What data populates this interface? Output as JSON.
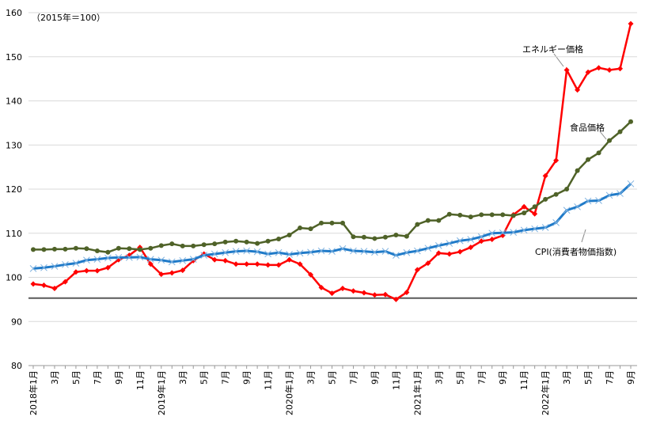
{
  "chart_data": {
    "type": "line",
    "unit_note": "（2015年＝100）",
    "categories": [
      "2018年1月",
      null,
      "3月",
      null,
      "5月",
      null,
      "7月",
      null,
      "9月",
      null,
      "11月",
      null,
      "2019年1月",
      null,
      "3月",
      null,
      "5月",
      null,
      "7月",
      null,
      "9月",
      null,
      "11月",
      null,
      "2020年1月",
      null,
      "3月",
      null,
      "5月",
      null,
      "7月",
      null,
      "9月",
      null,
      "11月",
      null,
      "2021年1月",
      null,
      "3月",
      null,
      "5月",
      null,
      "7月",
      null,
      "9月",
      null,
      "11月",
      null,
      "2022年1月",
      null,
      "3月",
      null,
      "5月",
      null,
      "7月",
      null,
      "9月"
    ],
    "series": [
      {
        "name": "エネルギー価格",
        "color": "#ff0000",
        "marker": "diamond",
        "values": [
          98.5,
          98.2,
          97.5,
          99,
          101.2,
          101.5,
          101.5,
          102.2,
          104,
          105,
          106.8,
          103,
          100.7,
          101,
          101.6,
          103.8,
          105.3,
          104,
          103.8,
          103,
          103,
          103,
          102.8,
          102.8,
          104,
          103,
          100.6,
          97.7,
          96.4,
          97.5,
          96.9,
          96.5,
          96,
          96.1,
          95,
          96.6,
          101.7,
          103.2,
          105.5,
          105.3,
          105.8,
          106.8,
          108.2,
          108.6,
          109.5,
          114.2,
          116,
          114.4,
          123,
          126.5,
          147,
          142.5,
          146.5,
          147.5,
          147,
          147.3,
          157.5
        ]
      },
      {
        "name": "食品価格",
        "color": "#4f6228",
        "marker": "circle",
        "values": [
          106.3,
          106.3,
          106.4,
          106.4,
          106.6,
          106.5,
          106,
          105.7,
          106.6,
          106.5,
          106.3,
          106.6,
          107.2,
          107.6,
          107.1,
          107.1,
          107.4,
          107.6,
          108,
          108.2,
          108,
          107.7,
          108.2,
          108.7,
          109.6,
          111.2,
          111,
          112.3,
          112.3,
          112.3,
          109.2,
          109.1,
          108.8,
          109.1,
          109.6,
          109.3,
          112,
          112.9,
          112.9,
          114.3,
          114.1,
          113.7,
          114.2,
          114.2,
          114.2,
          114,
          114.6,
          116,
          117.7,
          118.8,
          120,
          124.2,
          126.7,
          128.2,
          131,
          133,
          135.3
        ]
      },
      {
        "name": "CPI(消費者物価指数)",
        "color": "#1f7ac8",
        "marker": "cross",
        "values": [
          102,
          102.2,
          102.5,
          102.9,
          103.2,
          103.9,
          104.1,
          104.4,
          104.5,
          104.5,
          104.6,
          104.1,
          103.9,
          103.5,
          103.8,
          104.1,
          105,
          105.3,
          105.6,
          105.9,
          106,
          105.8,
          105.3,
          105.6,
          105.2,
          105.5,
          105.7,
          106,
          105.9,
          106.5,
          106,
          105.9,
          105.7,
          105.9,
          105,
          105.6,
          106,
          106.6,
          107.2,
          107.7,
          108.3,
          108.6,
          109.2,
          110,
          110.1,
          110.2,
          110.7,
          111,
          111.3,
          112.4,
          115.2,
          116,
          117.3,
          117.4,
          118.6,
          119,
          121.2
        ]
      }
    ],
    "reference_line": 95.3,
    "ylim": [
      80,
      160
    ],
    "yticks": [
      80,
      90,
      100,
      110,
      120,
      130,
      140,
      150,
      160
    ],
    "grid": true
  }
}
